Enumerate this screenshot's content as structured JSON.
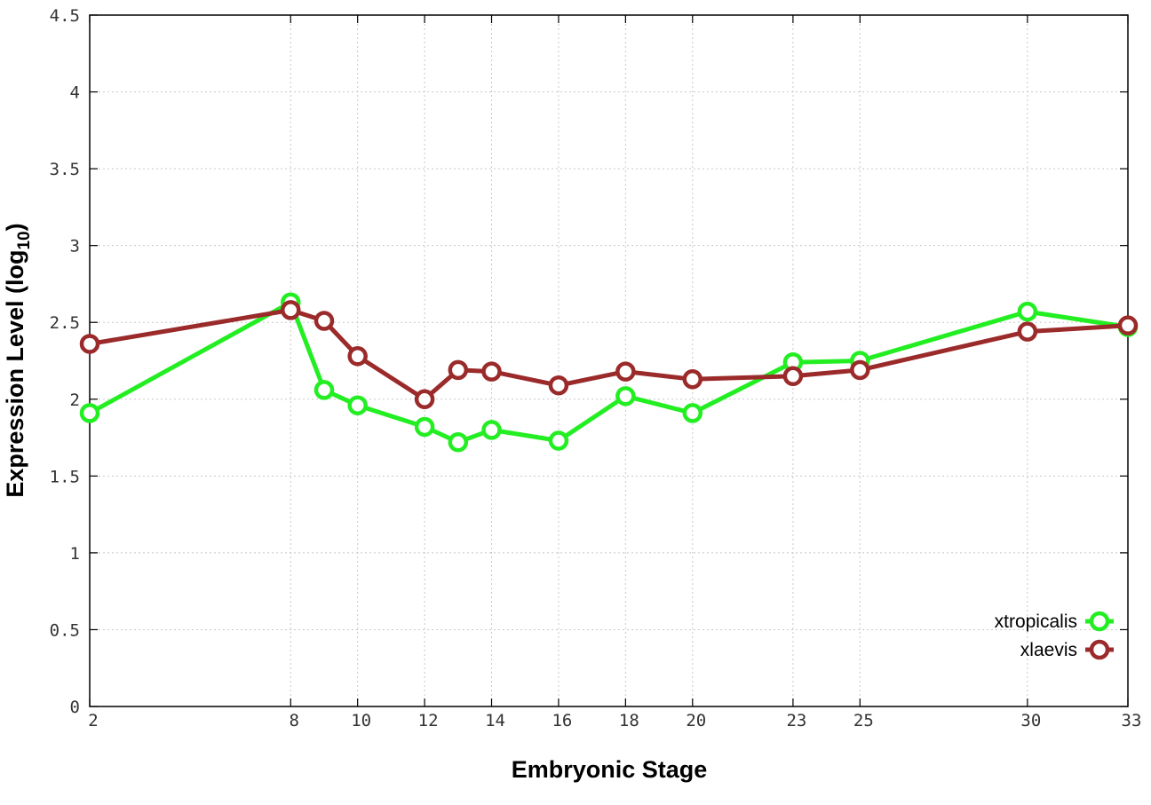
{
  "chart_data": {
    "type": "line",
    "xlabel": "Embryonic Stage",
    "ylabel": "Expression Level (log",
    "ylabel_subscript": "10",
    "ylabel_close": ")",
    "x_ticks": [
      2,
      8,
      10,
      12,
      14,
      16,
      18,
      20,
      23,
      25,
      30,
      33
    ],
    "y_ticks": [
      0,
      0.5,
      1,
      1.5,
      2,
      2.5,
      3,
      3.5,
      4,
      4.5
    ],
    "y_tick_labels": [
      "0",
      "0.5",
      "1",
      "1.5",
      "2",
      "2.5",
      "3",
      "3.5",
      "4",
      "4.5"
    ],
    "xlim": [
      2,
      33
    ],
    "ylim": [
      0,
      4.5
    ],
    "grid": true,
    "legend_position": "bottom-right",
    "series": [
      {
        "name": "xtropicalis",
        "color": "#22ee22",
        "x": [
          2,
          8,
          9,
          10,
          12,
          13,
          14,
          16,
          18,
          20,
          23,
          25,
          30,
          33
        ],
        "y": [
          1.91,
          2.63,
          2.06,
          1.96,
          1.82,
          1.72,
          1.8,
          1.73,
          2.02,
          1.91,
          2.24,
          2.25,
          2.57,
          2.47
        ]
      },
      {
        "name": "xlaevis",
        "color": "#9b2a2a",
        "x": [
          2,
          8,
          9,
          10,
          12,
          13,
          14,
          16,
          18,
          20,
          23,
          25,
          30,
          33
        ],
        "y": [
          2.36,
          2.58,
          2.51,
          2.28,
          2.0,
          2.19,
          2.18,
          2.09,
          2.18,
          2.13,
          2.15,
          2.19,
          2.44,
          2.48
        ]
      }
    ]
  }
}
